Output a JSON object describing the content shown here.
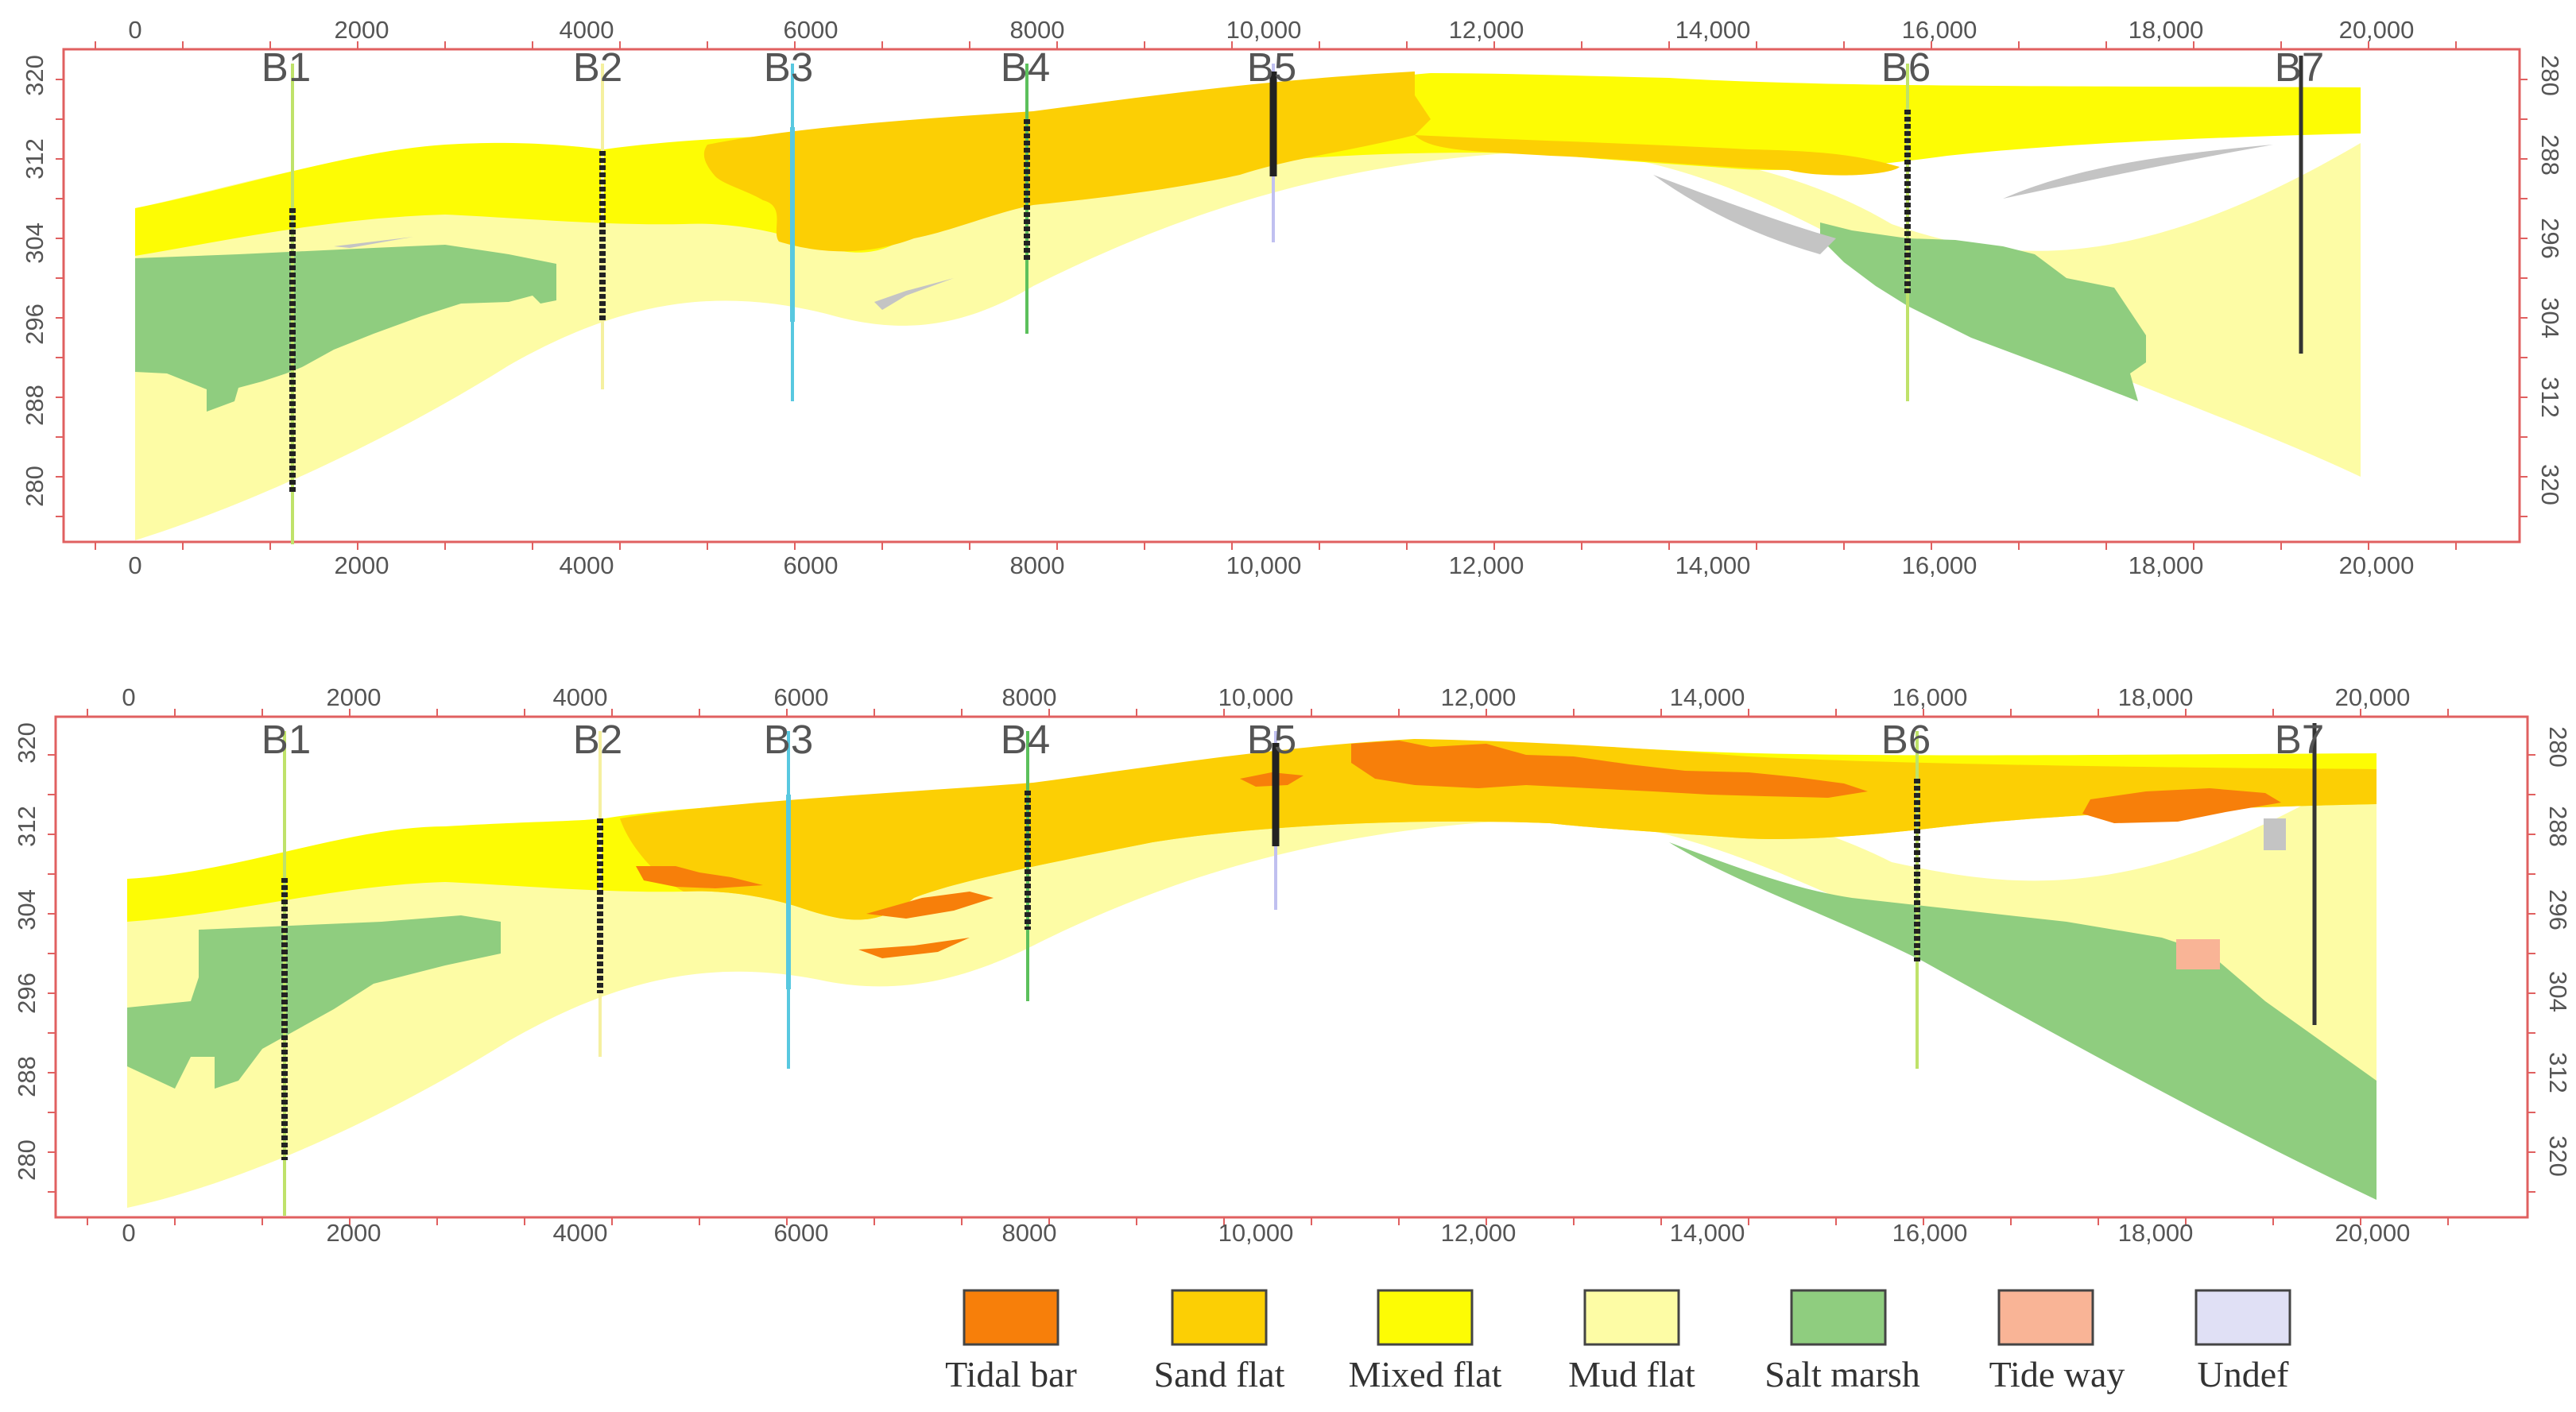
{
  "figure": "Geological facies cross-sections B1 to B7",
  "x_ticks": [
    "0",
    "2000",
    "4000",
    "6000",
    "8000",
    "10,000",
    "12,000",
    "14,000",
    "16,000",
    "18,000",
    "20,000"
  ],
  "left_ticks": [
    "320",
    "312",
    "304",
    "296",
    "288",
    "280"
  ],
  "right_ticks": [
    "280",
    "288",
    "296",
    "304",
    "312",
    "320"
  ],
  "wells": [
    "B1",
    "B2",
    "B3",
    "B4",
    "B5",
    "B6",
    "B7"
  ],
  "colors": {
    "tidal_bar": "#f77f0a",
    "sand_flat": "#fccf04",
    "mixed_flat": "#fdfc04",
    "mud_flat": "#fdfca5",
    "salt_marsh": "#8fcd7f",
    "tide_way": "#f9b496",
    "undef": "#e0e0f5",
    "grey_lens": "#c4c4c4",
    "axis": "#e06060",
    "text": "#555555"
  },
  "legend": [
    {
      "label": "Tidal bar",
      "color": "#f77f0a"
    },
    {
      "label": "Sand flat",
      "color": "#fccf04"
    },
    {
      "label": "Mixed flat",
      "color": "#fdfc04"
    },
    {
      "label": "Mud flat",
      "color": "#fdfca5"
    },
    {
      "label": "Salt marsh",
      "color": "#8fcd7f"
    },
    {
      "label": "Tide way",
      "color": "#f9b496"
    },
    {
      "label": "Undef",
      "color": "#e0e0f5"
    }
  ]
}
